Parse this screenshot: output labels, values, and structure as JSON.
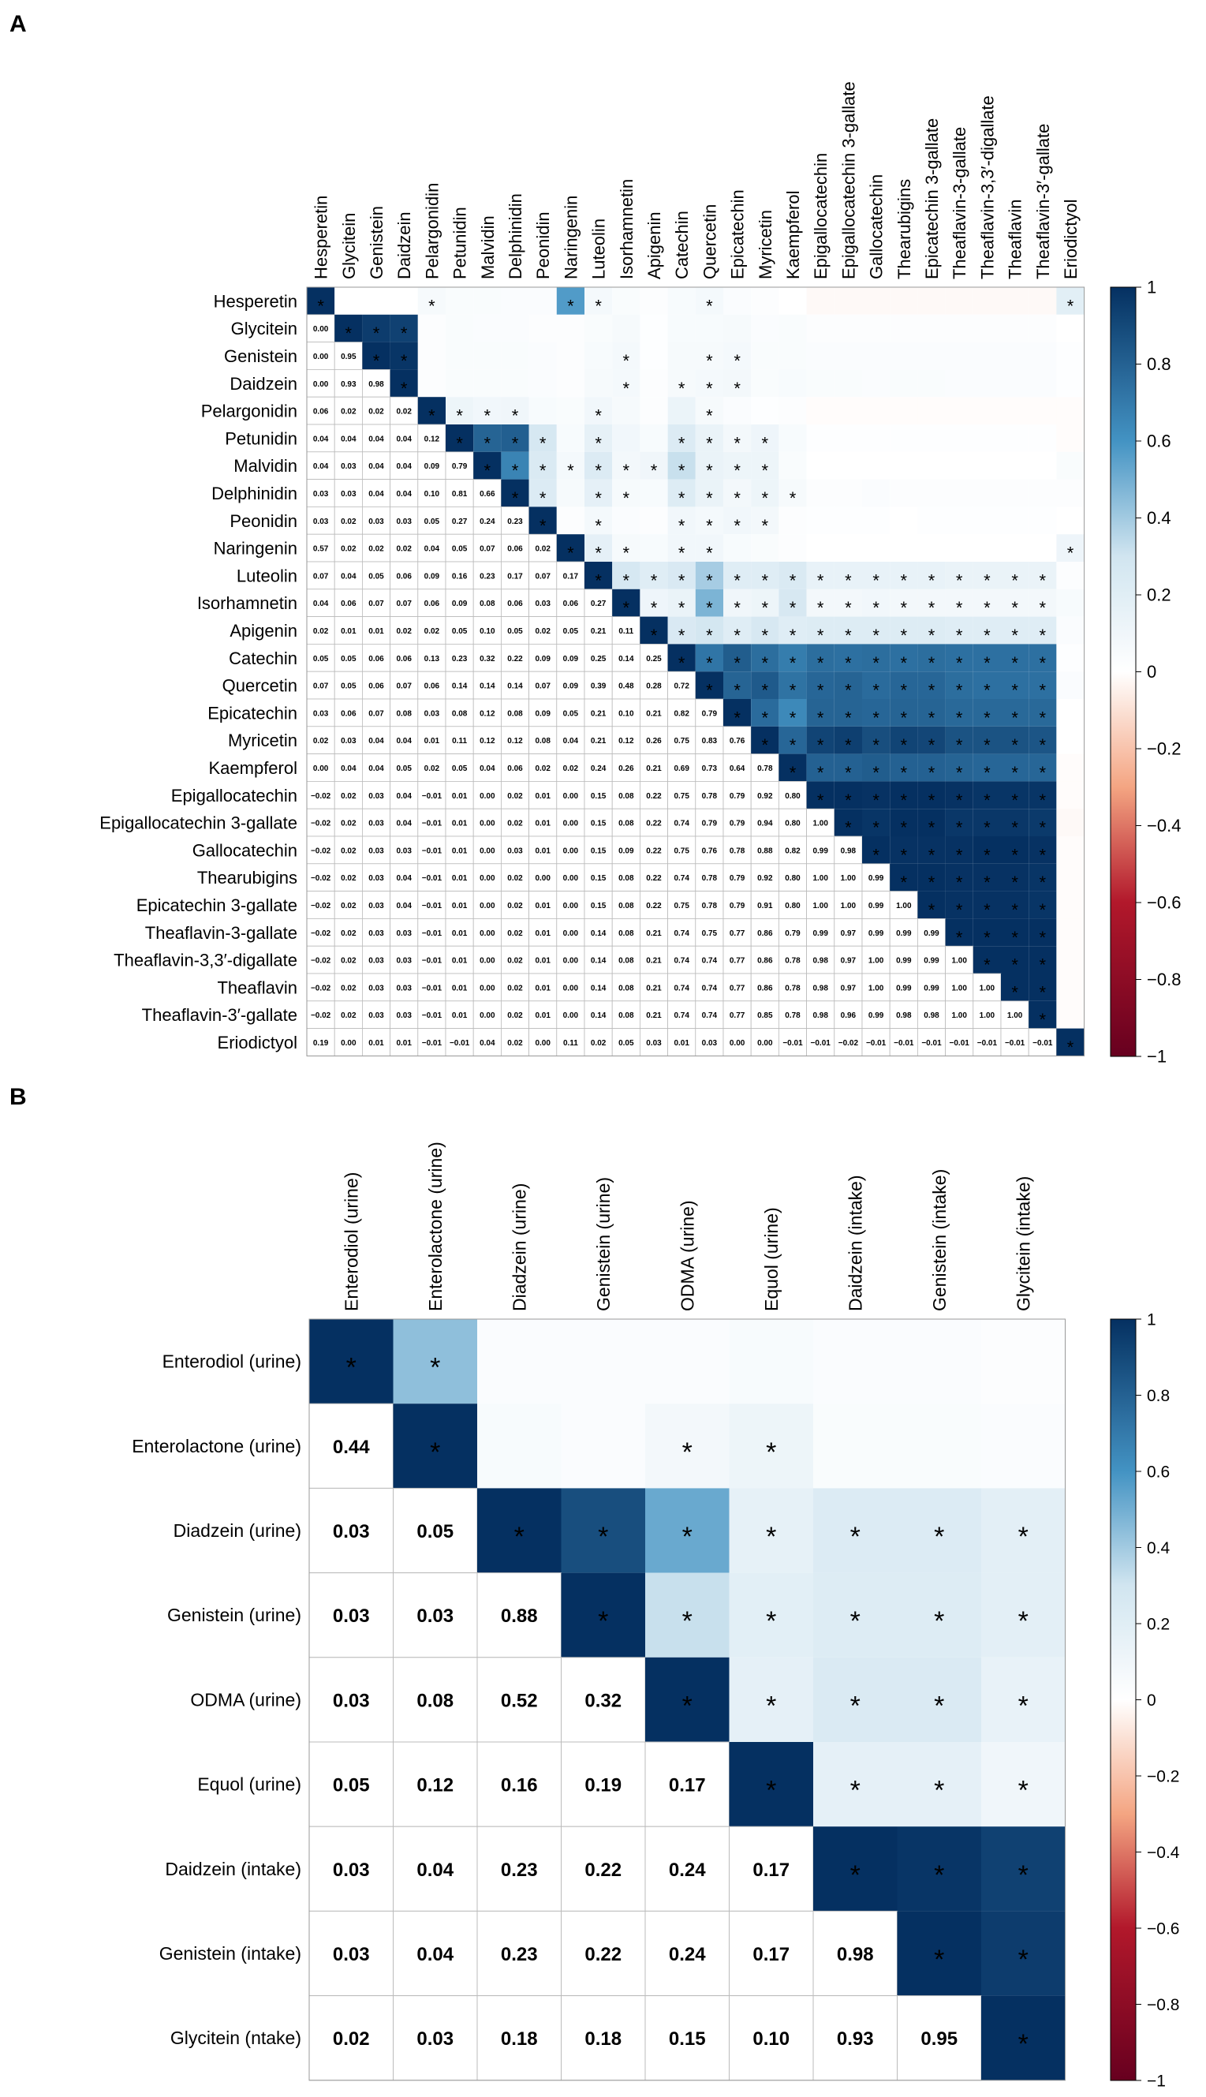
{
  "panels": [
    {
      "panel_label": "A",
      "chart_data": {
        "type": "heatmap",
        "variant": "correlation-matrix-lower-values-upper-colors",
        "title": "",
        "color_scale": {
          "min": -1,
          "max": 1,
          "ticks": [
            "1",
            "0.8",
            "0.6",
            "0.4",
            "0.2",
            "0",
            "−0.2",
            "−0.4",
            "−0.6",
            "−0.8",
            "−1"
          ],
          "low_color": "#67001f",
          "mid_color": "#ffffff",
          "high_color": "#053061"
        },
        "significance_marker": "*",
        "labels": [
          "Hesperetin",
          "Glycitein",
          "Genistein",
          "Daidzein",
          "Pelargonidin",
          "Petunidin",
          "Malvidin",
          "Delphinidin",
          "Peonidin",
          "Naringenin",
          "Luteolin",
          "Isorhamnetin",
          "Apigenin",
          "Catechin",
          "Quercetin",
          "Epicatechin",
          "Myricetin",
          "Kaempferol",
          "Epigallocatechin",
          "Epigallocatechin 3-gallate",
          "Gallocatechin",
          "Thearubigins",
          "Epicatechin 3-gallate",
          "Theaflavin-3-gallate",
          "Theaflavin-3,3′-digallate",
          "Theaflavin",
          "Theaflavin-3′-gallate",
          "Eriodictyol"
        ],
        "lower_values": [
          [],
          [
            "0.00"
          ],
          [
            "0.00",
            "0.95"
          ],
          [
            "0.00",
            "0.93",
            "0.98"
          ],
          [
            "0.06",
            "0.02",
            "0.02",
            "0.02"
          ],
          [
            "0.04",
            "0.04",
            "0.04",
            "0.04",
            "0.12"
          ],
          [
            "0.04",
            "0.03",
            "0.04",
            "0.04",
            "0.09",
            "0.79"
          ],
          [
            "0.03",
            "0.03",
            "0.04",
            "0.04",
            "0.10",
            "0.81",
            "0.66"
          ],
          [
            "0.03",
            "0.02",
            "0.03",
            "0.03",
            "0.05",
            "0.27",
            "0.24",
            "0.23"
          ],
          [
            "0.57",
            "0.02",
            "0.02",
            "0.02",
            "0.04",
            "0.05",
            "0.07",
            "0.06",
            "0.02"
          ],
          [
            "0.07",
            "0.04",
            "0.05",
            "0.06",
            "0.09",
            "0.16",
            "0.23",
            "0.17",
            "0.07",
            "0.17"
          ],
          [
            "0.04",
            "0.06",
            "0.07",
            "0.07",
            "0.06",
            "0.09",
            "0.08",
            "0.06",
            "0.03",
            "0.06",
            "0.27"
          ],
          [
            "0.02",
            "0.01",
            "0.01",
            "0.02",
            "0.02",
            "0.05",
            "0.10",
            "0.05",
            "0.02",
            "0.05",
            "0.21",
            "0.11"
          ],
          [
            "0.05",
            "0.05",
            "0.06",
            "0.06",
            "0.13",
            "0.23",
            "0.32",
            "0.22",
            "0.09",
            "0.09",
            "0.25",
            "0.14",
            "0.25"
          ],
          [
            "0.07",
            "0.05",
            "0.06",
            "0.07",
            "0.06",
            "0.14",
            "0.14",
            "0.14",
            "0.07",
            "0.09",
            "0.39",
            "0.48",
            "0.28",
            "0.72"
          ],
          [
            "0.03",
            "0.06",
            "0.07",
            "0.08",
            "0.03",
            "0.08",
            "0.12",
            "0.08",
            "0.09",
            "0.05",
            "0.21",
            "0.10",
            "0.21",
            "0.82",
            "0.79"
          ],
          [
            "0.02",
            "0.03",
            "0.04",
            "0.04",
            "0.01",
            "0.11",
            "0.12",
            "0.12",
            "0.08",
            "0.04",
            "0.21",
            "0.12",
            "0.26",
            "0.75",
            "0.83",
            "0.76"
          ],
          [
            "0.00",
            "0.04",
            "0.04",
            "0.05",
            "0.02",
            "0.05",
            "0.04",
            "0.06",
            "0.02",
            "0.02",
            "0.24",
            "0.26",
            "0.21",
            "0.69",
            "0.73",
            "0.64",
            "0.78"
          ],
          [
            "−0.02",
            "0.02",
            "0.03",
            "0.04",
            "−0.01",
            "0.01",
            "0.00",
            "0.02",
            "0.01",
            "0.00",
            "0.15",
            "0.08",
            "0.22",
            "0.75",
            "0.78",
            "0.79",
            "0.92",
            "0.80"
          ],
          [
            "−0.02",
            "0.02",
            "0.03",
            "0.04",
            "−0.01",
            "0.01",
            "0.00",
            "0.02",
            "0.01",
            "0.00",
            "0.15",
            "0.08",
            "0.22",
            "0.74",
            "0.79",
            "0.79",
            "0.94",
            "0.80",
            "1.00"
          ],
          [
            "−0.02",
            "0.02",
            "0.03",
            "0.03",
            "−0.01",
            "0.01",
            "0.00",
            "0.03",
            "0.01",
            "0.00",
            "0.15",
            "0.09",
            "0.22",
            "0.75",
            "0.76",
            "0.78",
            "0.88",
            "0.82",
            "0.99",
            "0.98"
          ],
          [
            "−0.02",
            "0.02",
            "0.03",
            "0.04",
            "−0.01",
            "0.01",
            "0.00",
            "0.02",
            "0.00",
            "0.00",
            "0.15",
            "0.08",
            "0.22",
            "0.74",
            "0.78",
            "0.79",
            "0.92",
            "0.80",
            "1.00",
            "1.00",
            "0.99"
          ],
          [
            "−0.02",
            "0.02",
            "0.03",
            "0.04",
            "−0.01",
            "0.01",
            "0.00",
            "0.02",
            "0.01",
            "0.00",
            "0.15",
            "0.08",
            "0.22",
            "0.75",
            "0.78",
            "0.79",
            "0.91",
            "0.80",
            "1.00",
            "1.00",
            "0.99",
            "1.00"
          ],
          [
            "−0.02",
            "0.02",
            "0.03",
            "0.03",
            "−0.01",
            "0.01",
            "0.00",
            "0.02",
            "0.01",
            "0.00",
            "0.14",
            "0.08",
            "0.21",
            "0.74",
            "0.75",
            "0.77",
            "0.86",
            "0.79",
            "0.99",
            "0.97",
            "0.99",
            "0.99",
            "0.99"
          ],
          [
            "−0.02",
            "0.02",
            "0.03",
            "0.03",
            "−0.01",
            "0.01",
            "0.00",
            "0.02",
            "0.01",
            "0.00",
            "0.14",
            "0.08",
            "0.21",
            "0.74",
            "0.74",
            "0.77",
            "0.86",
            "0.78",
            "0.98",
            "0.97",
            "1.00",
            "0.99",
            "0.99",
            "1.00"
          ],
          [
            "−0.02",
            "0.02",
            "0.03",
            "0.03",
            "−0.01",
            "0.01",
            "0.00",
            "0.02",
            "0.01",
            "0.00",
            "0.14",
            "0.08",
            "0.21",
            "0.74",
            "0.74",
            "0.77",
            "0.86",
            "0.78",
            "0.98",
            "0.97",
            "1.00",
            "0.99",
            "0.99",
            "1.00",
            "1.00"
          ],
          [
            "−0.02",
            "0.02",
            "0.03",
            "0.03",
            "−0.01",
            "0.01",
            "0.00",
            "0.02",
            "0.01",
            "0.00",
            "0.14",
            "0.08",
            "0.21",
            "0.74",
            "0.74",
            "0.77",
            "0.85",
            "0.78",
            "0.98",
            "0.96",
            "0.99",
            "0.98",
            "0.98",
            "1.00",
            "1.00",
            "1.00"
          ],
          [
            "0.19",
            "0.00",
            "0.01",
            "0.01",
            "−0.01",
            "−0.01",
            "0.04",
            "0.02",
            "0.00",
            "0.11",
            "0.02",
            "0.05",
            "0.03",
            "0.01",
            "0.03",
            "0.00",
            "0.00",
            "−0.01",
            "−0.01",
            "−0.02",
            "−0.01",
            "−0.01",
            "−0.01",
            "−0.01",
            "−0.01",
            "−0.01",
            "−0.01"
          ]
        ],
        "significant_upper": [
          [
            4,
            9,
            10,
            14,
            27
          ],
          [
            2,
            3
          ],
          [
            3,
            11,
            14,
            15
          ],
          [
            11,
            13,
            14,
            15
          ],
          [
            5,
            6,
            7,
            10,
            14
          ],
          [
            6,
            7,
            8,
            10,
            13,
            14,
            15,
            16
          ],
          [
            7,
            8,
            9,
            10,
            11,
            12,
            13,
            14,
            15,
            16
          ],
          [
            8,
            10,
            11,
            13,
            14,
            15,
            16,
            17
          ],
          [
            10,
            13,
            14,
            15,
            16
          ],
          [
            10,
            11,
            13,
            14,
            27
          ],
          [
            11,
            12,
            13,
            14,
            15,
            16,
            17,
            18,
            19,
            20,
            21,
            22,
            23,
            24,
            25,
            26
          ],
          [
            12,
            13,
            14,
            15,
            16,
            17,
            18,
            19,
            20,
            21,
            22,
            23,
            24,
            25,
            26
          ],
          [
            13,
            14,
            15,
            16,
            17,
            18,
            19,
            20,
            21,
            22,
            23,
            24,
            25,
            26
          ],
          [
            14,
            15,
            16,
            17,
            18,
            19,
            20,
            21,
            22,
            23,
            24,
            25,
            26
          ],
          [
            15,
            16,
            17,
            18,
            19,
            20,
            21,
            22,
            23,
            24,
            25,
            26
          ],
          [
            16,
            17,
            18,
            19,
            20,
            21,
            22,
            23,
            24,
            25,
            26
          ],
          [
            17,
            18,
            19,
            20,
            21,
            22,
            23,
            24,
            25,
            26
          ],
          [
            18,
            19,
            20,
            21,
            22,
            23,
            24,
            25,
            26
          ],
          [
            19,
            20,
            21,
            22,
            23,
            24,
            25,
            26
          ],
          [
            20,
            21,
            22,
            23,
            24,
            25,
            26
          ],
          [
            21,
            22,
            23,
            24,
            25,
            26
          ],
          [
            22,
            23,
            24,
            25,
            26
          ],
          [
            23,
            24,
            25,
            26
          ],
          [
            24,
            25,
            26
          ],
          [
            25,
            26
          ],
          [
            26
          ],
          [],
          []
        ]
      }
    },
    {
      "panel_label": "B",
      "chart_data": {
        "type": "heatmap",
        "variant": "correlation-matrix-lower-values-upper-colors",
        "title": "",
        "color_scale": {
          "min": -1,
          "max": 1,
          "ticks": [
            "1",
            "0.8",
            "0.6",
            "0.4",
            "0.2",
            "0",
            "−0.2",
            "−0.4",
            "−0.6",
            "−0.8",
            "−1"
          ],
          "low_color": "#67001f",
          "mid_color": "#ffffff",
          "high_color": "#053061"
        },
        "significance_marker": "*",
        "col_labels": [
          "Enterodiol (urine)",
          "Enterolactone (urine)",
          "Diadzein (urine)",
          "Genistein (urine)",
          "ODMA (urine)",
          "Equol (urine)",
          "Daidzein (intake)",
          "Genistein (intake)",
          "Glycitein (intake)"
        ],
        "row_labels": [
          "Enterodiol (urine)",
          "Enterolactone (urine)",
          "Diadzein (urine)",
          "Genistein (urine)",
          "ODMA (urine)",
          "Equol (urine)",
          "Daidzein (intake)",
          "Genistein (intake)",
          "Glycitein (ntake)"
        ],
        "lower_values": [
          [],
          [
            "0.44"
          ],
          [
            "0.03",
            "0.05"
          ],
          [
            "0.03",
            "0.03",
            "0.88"
          ],
          [
            "0.03",
            "0.08",
            "0.52",
            "0.32"
          ],
          [
            "0.05",
            "0.12",
            "0.16",
            "0.19",
            "0.17"
          ],
          [
            "0.03",
            "0.04",
            "0.23",
            "0.22",
            "0.24",
            "0.17"
          ],
          [
            "0.03",
            "0.04",
            "0.23",
            "0.22",
            "0.24",
            "0.17",
            "0.98"
          ],
          [
            "0.02",
            "0.03",
            "0.18",
            "0.18",
            "0.15",
            "0.10",
            "0.93",
            "0.95"
          ]
        ],
        "significant_upper": [
          [
            1
          ],
          [
            4,
            5
          ],
          [
            3,
            4,
            5,
            6,
            7,
            8
          ],
          [
            4,
            5,
            6,
            7,
            8
          ],
          [
            5,
            6,
            7,
            8
          ],
          [
            6,
            7,
            8
          ],
          [
            7,
            8
          ],
          [
            8
          ],
          []
        ]
      }
    }
  ]
}
